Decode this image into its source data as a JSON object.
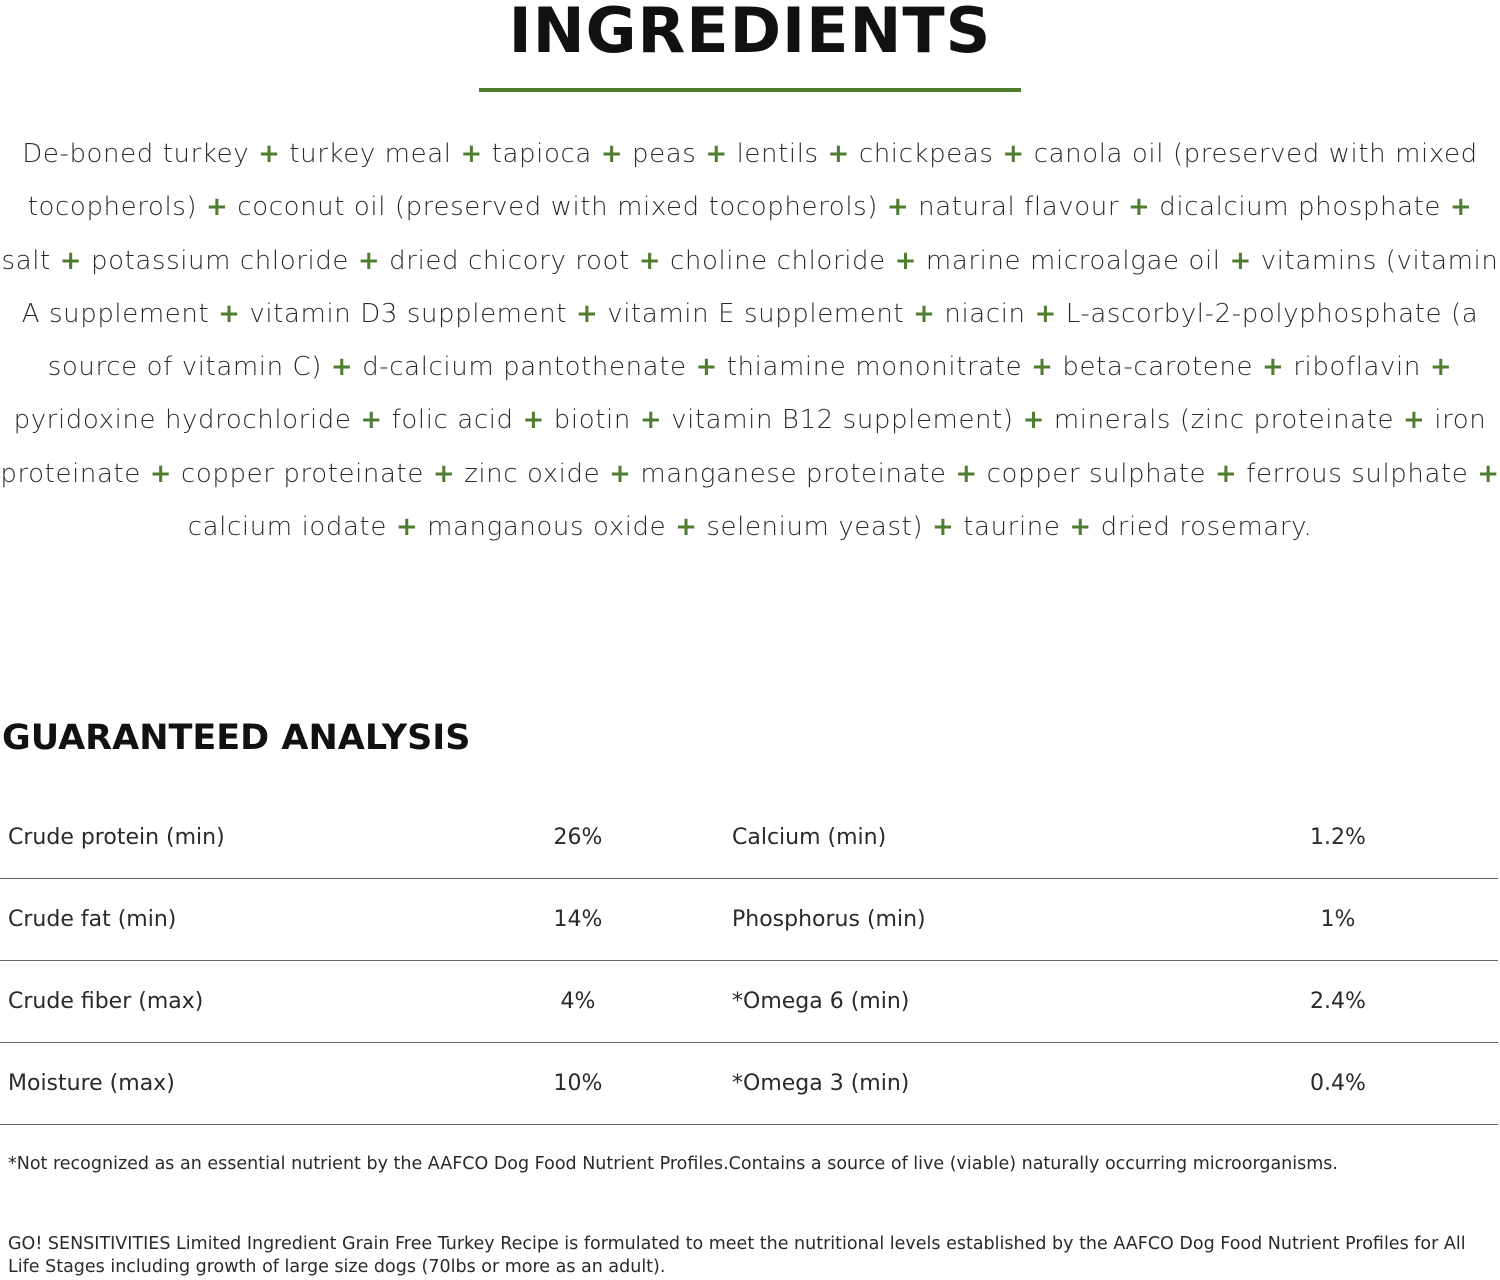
{
  "ingredients": {
    "title": "INGREDIENTS",
    "separator": "+",
    "items": [
      "De-boned turkey",
      "turkey meal",
      "tapioca",
      "peas",
      "lentils",
      "chickpeas",
      "canola oil (preserved with mixed tocopherols)",
      "coconut oil (preserved with mixed tocopherols)",
      "natural flavour",
      "dicalcium phosphate",
      "salt",
      "potassium chloride",
      "dried chicory root",
      "choline chloride",
      "marine microalgae oil",
      "vitamins (vitamin A supplement",
      "vitamin D3 supplement",
      "vitamin E supplement",
      "niacin",
      "L-ascorbyl-2-polyphosphate (a source of vitamin C)",
      "d-calcium pantothenate",
      "thiamine mononitrate",
      "beta-carotene",
      "riboflavin",
      "pyridoxine hydrochloride",
      "folic acid",
      "biotin",
      "vitamin B12 supplement)",
      "minerals (zinc proteinate",
      "iron proteinate",
      "copper proteinate",
      "zinc oxide",
      "manganese proteinate",
      "copper sulphate",
      "ferrous sulphate",
      "calcium iodate",
      "manganous oxide",
      "selenium yeast)",
      "taurine",
      "dried rosemary."
    ]
  },
  "analysis": {
    "title": "GUARANTEED ANALYSIS",
    "rows": [
      [
        "Crude protein (min)",
        "26%",
        "Calcium (min)",
        "1.2%"
      ],
      [
        "Crude fat (min)",
        "14%",
        "Phosphorus (min)",
        "1%"
      ],
      [
        "Crude fiber (max)",
        "4%",
        "*Omega 6 (min)",
        "2.4%"
      ],
      [
        "Moisture (max)",
        "10%",
        "*Omega 3 (min)",
        "0.4%"
      ]
    ],
    "footnote": "*Not recognized as an essential nutrient by the AAFCO Dog Food Nutrient Profiles.Contains a source of live (viable) naturally occurring microorganisms.",
    "statement": "GO! SENSITIVITIES Limited Ingredient Grain Free Turkey Recipe is formulated to meet the nutritional levels established by the AAFCO Dog Food Nutrient Profiles for All Life Stages including growth of large size dogs (70lbs or more as an adult)."
  }
}
